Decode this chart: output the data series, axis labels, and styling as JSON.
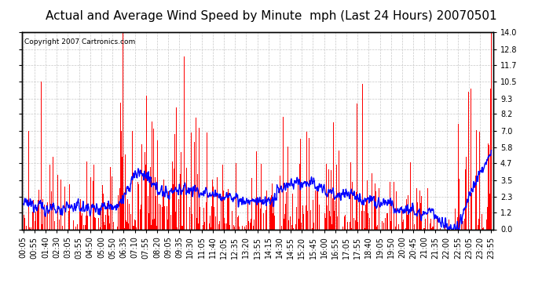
{
  "title": "Actual and Average Wind Speed by Minute  mph (Last 24 Hours) 20070501",
  "copyright_text": "Copyright 2007 Cartronics.com",
  "yticks": [
    0.0,
    1.2,
    2.3,
    3.5,
    4.7,
    5.8,
    7.0,
    8.2,
    9.3,
    10.5,
    11.7,
    12.8,
    14.0
  ],
  "ylim": [
    0.0,
    14.0
  ],
  "xtick_labels": [
    "00:05",
    "00:55",
    "01:40",
    "02:30",
    "03:05",
    "03:55",
    "04:50",
    "05:00",
    "05:50",
    "06:35",
    "07:10",
    "07:55",
    "08:20",
    "09:05",
    "09:35",
    "10:30",
    "11:05",
    "11:40",
    "12:05",
    "12:35",
    "13:20",
    "13:55",
    "14:15",
    "14:30",
    "14:55",
    "15:20",
    "15:45",
    "16:00",
    "16:55",
    "17:05",
    "17:55",
    "18:40",
    "19:05",
    "19:50",
    "20:00",
    "20:45",
    "21:00",
    "21:35",
    "22:00",
    "22:55",
    "23:05",
    "23:20",
    "23:55"
  ],
  "background_color": "#ffffff",
  "bar_color": "#ff0000",
  "line_color": "#0000ff",
  "grid_color": "#c8c8c8",
  "title_fontsize": 11,
  "copyright_fontsize": 6.5,
  "tick_fontsize": 7
}
